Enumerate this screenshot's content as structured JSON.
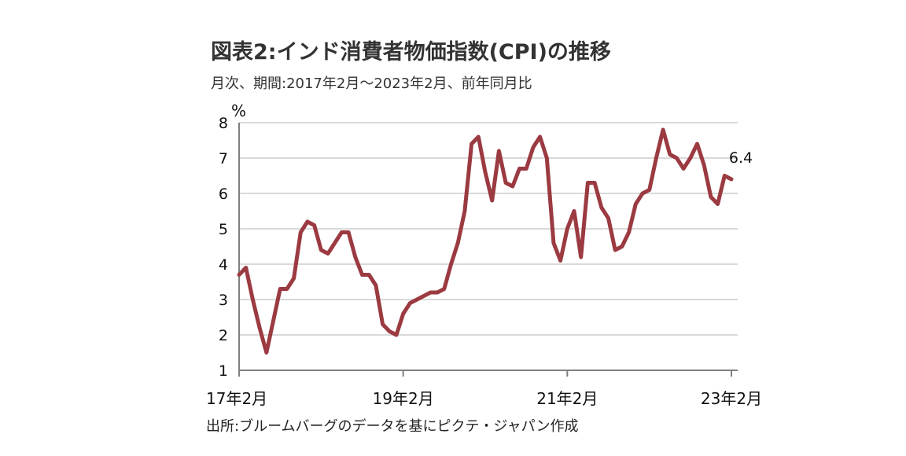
{
  "title": "図表2:インド消費者物価指数(CPI)の推移",
  "subtitle": "月次、期間:2017年2月〜2023年2月、前年同月比",
  "source": "出所:ブルームバーグのデータを基にピクテ・ジャパン作成",
  "colors": {
    "line": "#9b3a41",
    "grid": "#d9d9d9",
    "axis": "#7f7f7f"
  },
  "chart_data": {
    "type": "line",
    "title": "図表2:インド消費者物価指数(CPI)の推移",
    "subtitle": "月次、期間:2017年2月〜2023年2月、前年同月比",
    "ylabel": "%",
    "ylim": [
      1,
      8
    ],
    "yticks": [
      1,
      2,
      3,
      4,
      5,
      6,
      7,
      8
    ],
    "xticks": [
      "17年2月",
      "19年2月",
      "21年2月",
      "23年2月"
    ],
    "x_start": "2017-02",
    "x_end": "2023-02",
    "grid": true,
    "end_label": "6.4",
    "series": [
      {
        "values": [
          3.7,
          3.9,
          3.0,
          2.2,
          1.5,
          2.4,
          3.3,
          3.3,
          3.6,
          4.9,
          5.2,
          5.1,
          4.4,
          4.3,
          4.6,
          4.9,
          4.9,
          4.2,
          3.7,
          3.7,
          3.4,
          2.3,
          2.1,
          2.0,
          2.6,
          2.9,
          3.0,
          3.1,
          3.2,
          3.2,
          3.3,
          4.0,
          4.6,
          5.5,
          7.4,
          7.6,
          6.6,
          5.8,
          7.2,
          6.3,
          6.2,
          6.7,
          6.7,
          7.3,
          7.6,
          7.0,
          4.6,
          4.1,
          5.0,
          5.5,
          4.2,
          6.3,
          6.3,
          5.6,
          5.3,
          4.4,
          4.5,
          4.9,
          5.7,
          6.0,
          6.1,
          7.0,
          7.8,
          7.1,
          7.0,
          6.7,
          7.0,
          7.4,
          6.8,
          5.9,
          5.7,
          6.5,
          6.4
        ]
      }
    ]
  }
}
